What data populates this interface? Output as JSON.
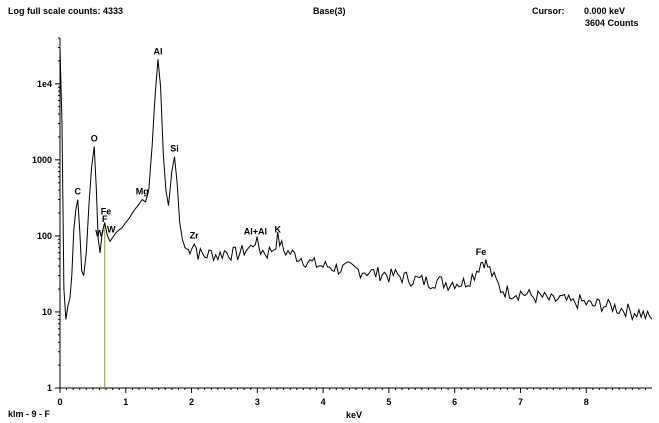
{
  "header": {
    "scale_label": "Log full scale counts: 4333",
    "spectrum_name": "Base(3)",
    "cursor_label": "Cursor:",
    "cursor_value": "0.000 keV",
    "cursor_counts": "3604 Counts"
  },
  "footer": {
    "sample_name": "klm - 9 - F"
  },
  "colors": {
    "spectrum": "#000000",
    "cursor_line": "#8b9a2a",
    "axis": "#000000"
  },
  "chart_data": {
    "type": "line",
    "title": "Base(3)",
    "xlabel": "keV",
    "ylabel": "",
    "xlim": [
      0,
      9
    ],
    "ylim": [
      1,
      40000
    ],
    "y_scale": "log",
    "grid": false,
    "x_ticks": [
      "0",
      "1",
      "2",
      "3",
      "4",
      "5",
      "6",
      "7",
      "8"
    ],
    "y_ticks": [
      {
        "value": 1,
        "label": "1"
      },
      {
        "value": 10,
        "label": "10"
      },
      {
        "value": 100,
        "label": "100"
      },
      {
        "value": 1000,
        "label": "1000"
      },
      {
        "value": 10000,
        "label": "1e4"
      }
    ],
    "cursor_kev": 0.68,
    "peaks": [
      {
        "label": "C",
        "kev": 0.27,
        "counts": 300
      },
      {
        "label": "O",
        "kev": 0.52,
        "counts": 1500
      },
      {
        "label": "Fe",
        "kev": 0.7,
        "counts": 165
      },
      {
        "label": "F",
        "kev": 0.68,
        "counts": 130
      },
      {
        "label": "W",
        "kev": 0.6,
        "counts": 85
      },
      {
        "label": "W",
        "kev": 0.78,
        "counts": 95
      },
      {
        "label": "Mg",
        "kev": 1.25,
        "counts": 300
      },
      {
        "label": "Al",
        "kev": 1.49,
        "counts": 21000
      },
      {
        "label": "Si",
        "kev": 1.74,
        "counts": 1100
      },
      {
        "label": "Zr",
        "kev": 2.04,
        "counts": 80
      },
      {
        "label": "Al+Al",
        "kev": 2.97,
        "counts": 90
      },
      {
        "label": "K",
        "kev": 3.31,
        "counts": 95
      },
      {
        "label": "Fe",
        "kev": 6.4,
        "counts": 48
      }
    ],
    "series": [
      {
        "x": [
          0.0,
          0.03,
          0.06,
          0.09,
          0.12,
          0.15,
          0.18,
          0.21,
          0.24,
          0.27,
          0.3,
          0.33,
          0.36,
          0.4,
          0.44,
          0.48,
          0.52,
          0.55,
          0.58,
          0.61,
          0.64,
          0.68,
          0.72,
          0.76,
          0.8,
          0.85,
          0.9,
          0.95,
          1.0,
          1.05,
          1.1,
          1.15,
          1.2,
          1.25,
          1.3,
          1.35,
          1.4,
          1.45,
          1.49,
          1.53,
          1.57,
          1.61,
          1.65,
          1.7,
          1.74,
          1.78,
          1.82,
          1.86,
          1.9,
          1.95,
          2.0,
          2.04,
          2.1,
          2.2,
          2.3,
          2.4,
          2.5,
          2.6,
          2.7,
          2.8,
          2.9,
          2.97,
          3.05,
          3.15,
          3.25,
          3.31,
          3.4,
          3.5,
          3.6,
          3.7,
          3.8,
          3.9,
          4.0,
          4.1,
          4.2,
          4.3,
          4.4,
          4.5,
          4.6,
          4.7,
          4.8,
          4.9,
          5.0,
          5.1,
          5.2,
          5.3,
          5.4,
          5.5,
          5.6,
          5.7,
          5.8,
          5.9,
          6.0,
          6.1,
          6.2,
          6.3,
          6.4,
          6.45,
          6.5,
          6.6,
          6.7,
          6.8,
          6.9,
          7.0,
          7.1,
          7.2,
          7.3,
          7.4,
          7.5,
          7.6,
          7.7,
          7.8,
          7.9,
          8.0,
          8.1,
          8.2,
          8.3,
          8.4,
          8.5,
          8.6,
          8.7,
          8.8,
          8.9,
          9.0
        ],
        "y": [
          30000,
          3000,
          20,
          8,
          12,
          15,
          30,
          120,
          220,
          300,
          120,
          35,
          30,
          60,
          250,
          800,
          1500,
          450,
          90,
          60,
          110,
          150,
          100,
          85,
          95,
          110,
          120,
          130,
          150,
          170,
          200,
          230,
          260,
          300,
          280,
          400,
          1500,
          8000,
          21000,
          9000,
          1200,
          400,
          250,
          700,
          1100,
          500,
          150,
          90,
          70,
          65,
          75,
          80,
          60,
          55,
          60,
          55,
          62,
          60,
          58,
          65,
          70,
          90,
          65,
          60,
          70,
          95,
          65,
          60,
          55,
          50,
          45,
          42,
          40,
          40,
          38,
          37,
          38,
          36,
          35,
          34,
          32,
          33,
          30,
          31,
          29,
          28,
          27,
          26,
          25,
          26,
          25,
          24,
          25,
          24,
          26,
          32,
          45,
          48,
          40,
          28,
          20,
          19,
          18,
          18,
          17,
          16,
          16,
          15,
          14,
          15,
          14,
          13,
          14,
          13,
          12,
          13,
          12,
          12,
          11,
          11,
          10,
          10,
          9,
          8
        ]
      }
    ]
  }
}
